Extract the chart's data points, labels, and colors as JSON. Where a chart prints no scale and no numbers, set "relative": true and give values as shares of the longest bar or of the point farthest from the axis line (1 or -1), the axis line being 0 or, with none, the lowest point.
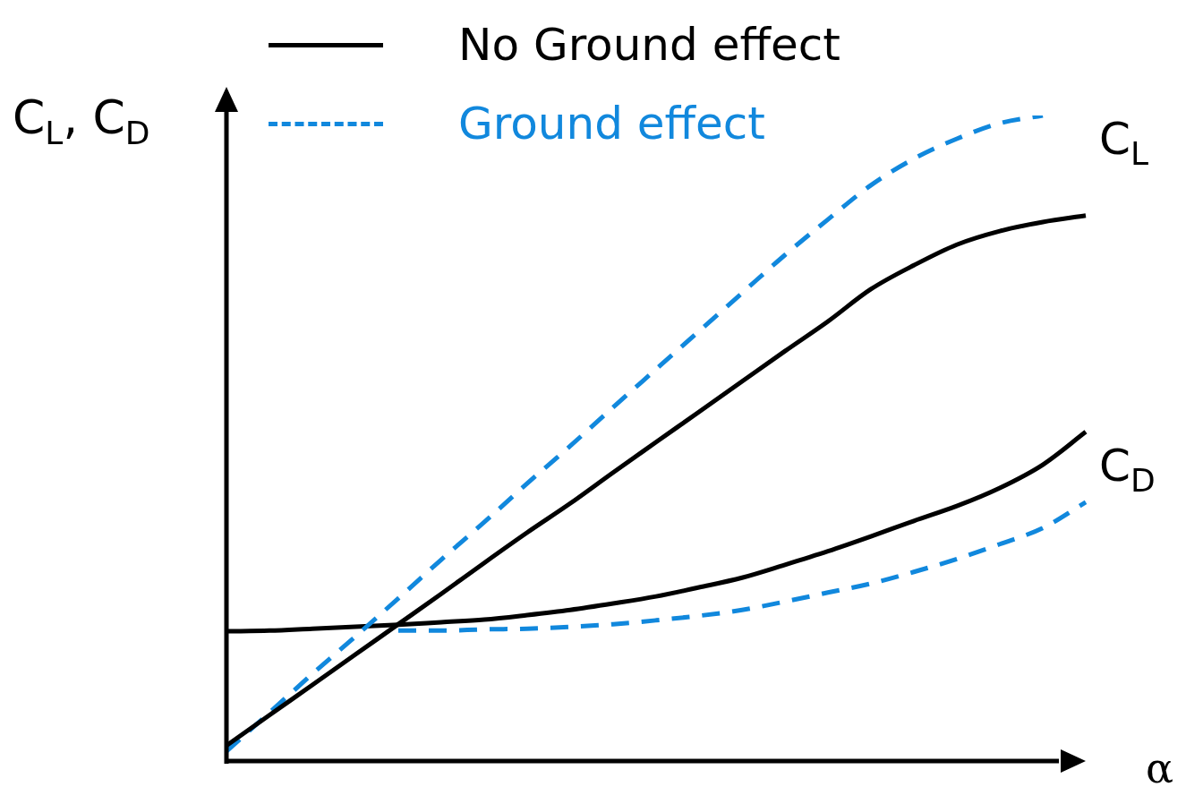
{
  "chart_data": {
    "type": "line",
    "relative": true,
    "xlabel": "α",
    "ylabel": "C$_{L}$, C$_{D}$",
    "legend": "top",
    "marker": "none",
    "categories": [
      null,
      null,
      null,
      null,
      null,
      null,
      null,
      null,
      null,
      null,
      null,
      null,
      null,
      null,
      null,
      null,
      null,
      null,
      null,
      null,
      null
    ],
    "series": [
      {
        "name": "No Ground effect",
        "color": "#000000",
        "line_style": "solid",
        "values": [
          0.024,
          0.071,
          0.118,
          0.165,
          0.212,
          0.259,
          0.307,
          0.354,
          0.399,
          0.447,
          0.494,
          0.541,
          0.588,
          0.635,
          0.681,
          0.731,
          0.768,
          0.8,
          0.821,
          0.835,
          0.845
        ]
      },
      {
        "name": "Ground effect",
        "color": "#1188dd",
        "line_style": "dashed",
        "values": [
          0.015,
          0.075,
          0.135,
          0.193,
          0.252,
          0.312,
          0.37,
          0.43,
          0.488,
          0.548,
          0.607,
          0.666,
          0.725,
          0.784,
          0.839,
          0.892,
          0.933,
          0.964,
          0.988,
          1.0,
          null
        ]
      },
      {
        "color": "#000000",
        "line_style": "solid",
        "values": [
          0.201,
          0.202,
          0.205,
          0.208,
          0.211,
          0.215,
          0.219,
          0.226,
          0.234,
          0.244,
          0.255,
          0.269,
          0.284,
          0.304,
          0.325,
          0.348,
          0.372,
          0.395,
          0.423,
          0.459,
          0.51
        ]
      },
      {
        "color": "#1188dd",
        "line_style": "dashed",
        "values": [
          null,
          null,
          null,
          null,
          0.202,
          0.202,
          0.204,
          0.205,
          0.208,
          0.212,
          0.218,
          0.225,
          0.234,
          0.247,
          0.261,
          0.275,
          0.293,
          0.313,
          0.336,
          0.361,
          0.401
        ]
      }
    ],
    "annotations": [
      "C$_{L}$",
      "C$_{D}$"
    ]
  }
}
